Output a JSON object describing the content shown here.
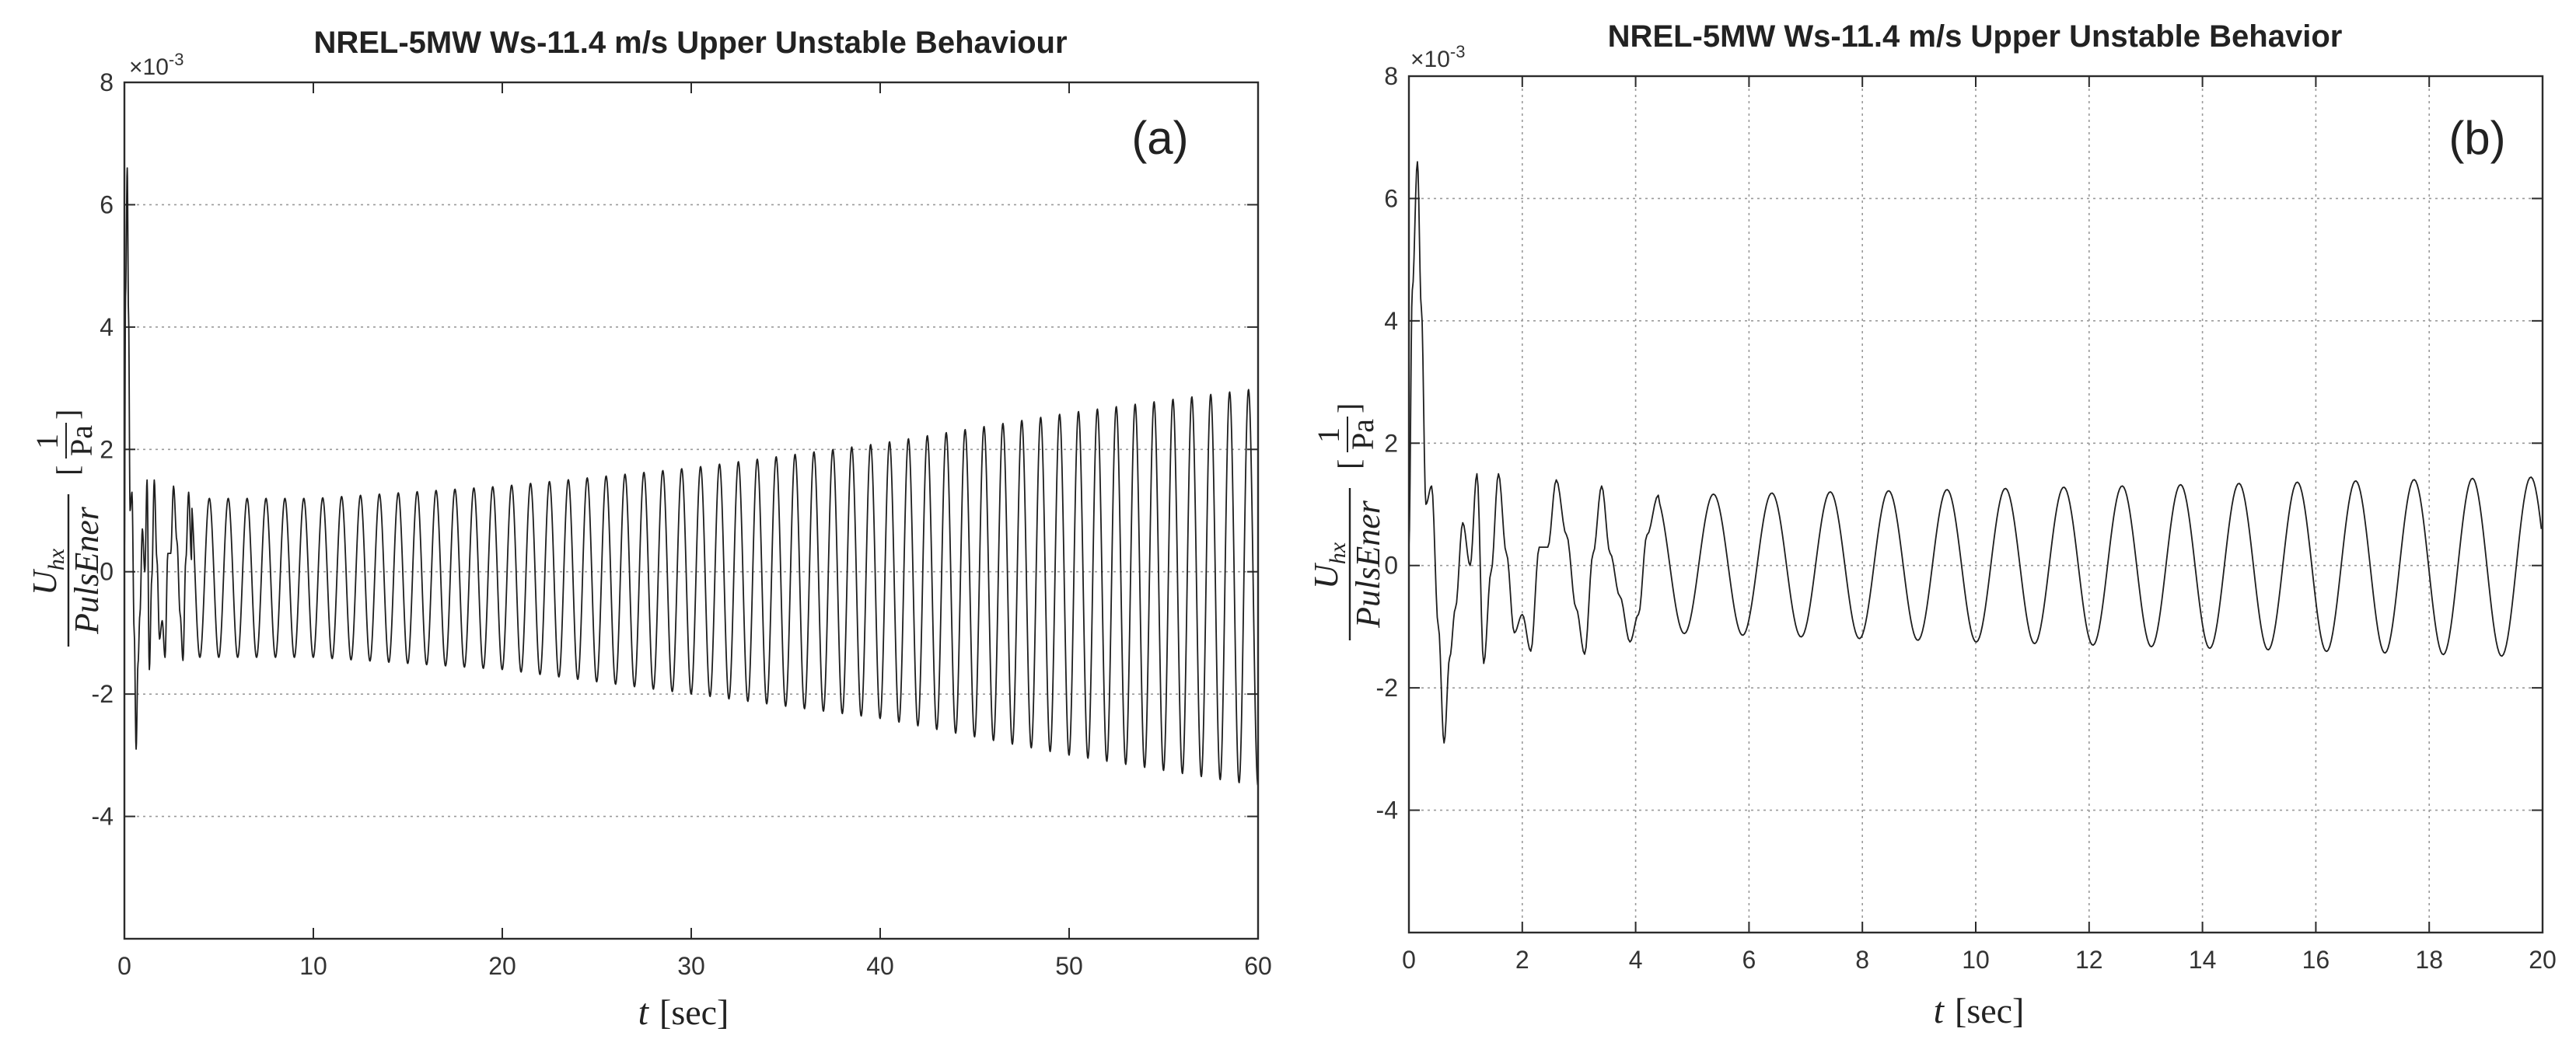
{
  "chart_data": [
    {
      "id": "a",
      "type": "line",
      "title": "NREL-5MW Ws-11.4 m/s Upper Unstable Behaviour",
      "panel_label": "(a)",
      "xlabel": {
        "symbol": "t",
        "unit": "[sec]"
      },
      "ylabel": {
        "numerator": "U",
        "numerator_sub": "hx",
        "denominator": "PulsEner",
        "unit_numerator": "1",
        "unit_denominator": "Pa"
      },
      "exponent_label": "×10",
      "exponent_power": "-3",
      "xlim": [
        0,
        60
      ],
      "ylim": [
        -6,
        8
      ],
      "xticks": [
        0,
        10,
        20,
        30,
        40,
        50,
        60
      ],
      "xtick_labels": [
        "0",
        "10",
        "20",
        "30",
        "40",
        "50",
        "60"
      ],
      "yticks": [
        -4,
        -2,
        0,
        2,
        4,
        6,
        8
      ],
      "ytick_labels": [
        "-4",
        "-2",
        "0",
        "2",
        "4",
        "6",
        "8"
      ],
      "grid": {
        "x": false,
        "y": true
      },
      "series": [
        {
          "name": "U_hx / PulsEner",
          "description": "oscillation, period approx. 1 s, amplitude growing from approx. 1.2e-3 to 3e-3 after an initial transient",
          "transient": {
            "t": [
              0,
              0.06,
              0.15,
              0.22,
              0.3,
              0.4,
              0.52,
              0.62,
              0.72,
              0.82,
              0.95,
              1.08,
              1.2,
              1.32,
              1.45,
              1.58,
              1.72,
              1.86,
              2.0,
              2.15,
              2.3,
              2.45,
              2.6,
              2.78,
              2.95,
              3.1,
              3.25,
              3.4,
              3.55
            ],
            "y": [
              0.3,
              4.5,
              6.6,
              4.2,
              1.0,
              1.3,
              -1.0,
              -2.9,
              -1.5,
              -0.7,
              0.7,
              0.0,
              1.5,
              -1.6,
              -0.1,
              1.5,
              0.2,
              -1.1,
              -0.8,
              -1.4,
              0.3,
              0.3,
              1.4,
              0.5,
              -0.7,
              -1.45,
              0.2,
              1.3,
              0.2
            ]
          },
          "steady": {
            "t_start": 3.55,
            "t_end": 60,
            "period": 1.0,
            "upper_envelope": {
              "t": [
                3.55,
                10,
                20,
                30,
                40,
                50,
                60
              ],
              "y": [
                1.2,
                1.2,
                1.4,
                1.7,
                2.1,
                2.6,
                3.0
              ]
            },
            "lower_envelope": {
              "t": [
                3.55,
                10,
                20,
                30,
                40,
                50,
                60
              ],
              "y": [
                -1.4,
                -1.4,
                -1.6,
                -2.0,
                -2.4,
                -3.0,
                -3.5
              ]
            }
          }
        }
      ]
    },
    {
      "id": "b",
      "type": "line",
      "title": "NREL-5MW Ws-11.4 m/s Upper Unstable Behavior",
      "panel_label": "(b)",
      "xlabel": {
        "symbol": "t",
        "unit": "[sec]"
      },
      "ylabel": {
        "numerator": "U",
        "numerator_sub": "hx",
        "denominator": "PulsEner",
        "unit_numerator": "1",
        "unit_denominator": "Pa"
      },
      "exponent_label": "×10",
      "exponent_power": "-3",
      "xlim": [
        0,
        20
      ],
      "ylim": [
        -6,
        8
      ],
      "xticks": [
        0,
        2,
        4,
        6,
        8,
        10,
        12,
        14,
        16,
        18,
        20
      ],
      "xtick_labels": [
        "0",
        "2",
        "4",
        "6",
        "8",
        "10",
        "12",
        "14",
        "16",
        "18",
        "20"
      ],
      "yticks": [
        -4,
        -2,
        0,
        2,
        4,
        6,
        8
      ],
      "ytick_labels": [
        "-4",
        "-2",
        "0",
        "2",
        "4",
        "6",
        "8"
      ],
      "grid": {
        "x": true,
        "y": true
      },
      "series": [
        {
          "name": "U_hx / PulsEner",
          "description": "zoom of the first 20 s of the same signal",
          "transient": {
            "t": [
              0,
              0.06,
              0.15,
              0.22,
              0.3,
              0.4,
              0.52,
              0.62,
              0.72,
              0.82,
              0.95,
              1.08,
              1.2,
              1.32,
              1.45,
              1.58,
              1.72,
              1.86,
              2.0,
              2.15,
              2.3,
              2.45,
              2.6,
              2.78,
              2.95,
              3.1,
              3.25,
              3.4,
              3.55,
              3.72,
              3.9,
              4.05,
              4.2,
              4.4
            ],
            "y": [
              0.3,
              4.5,
              6.6,
              4.2,
              1.0,
              1.3,
              -1.0,
              -2.9,
              -1.5,
              -0.7,
              0.7,
              0.0,
              1.5,
              -1.6,
              -0.1,
              1.5,
              0.2,
              -1.1,
              -0.8,
              -1.4,
              0.3,
              0.3,
              1.4,
              0.5,
              -0.7,
              -1.45,
              0.2,
              1.3,
              0.2,
              -0.5,
              -1.25,
              -0.8,
              0.5,
              1.15
            ]
          },
          "steady": {
            "t_start": 4.4,
            "t_end": 20,
            "period": 1.03,
            "upper_envelope": {
              "t": [
                4.4,
                10,
                20
              ],
              "y": [
                1.15,
                1.25,
                1.45
              ]
            },
            "lower_envelope": {
              "t": [
                4.4,
                10,
                20
              ],
              "y": [
                -1.1,
                -1.25,
                -1.5
              ]
            }
          }
        }
      ]
    }
  ]
}
